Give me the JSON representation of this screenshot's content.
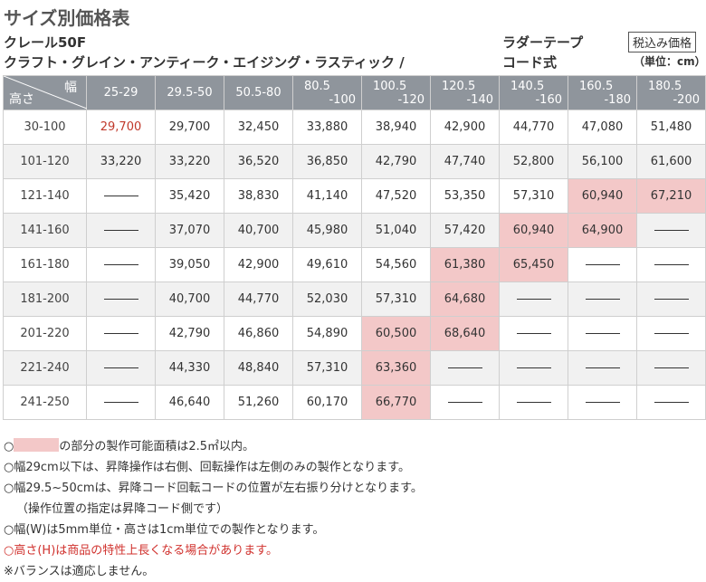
{
  "title": "サイズ別価格表",
  "product": {
    "line1": "クレール50F",
    "line2": "クラフト・グレイン・アンティーク・エイジング・ラスティック /"
  },
  "option": {
    "line1": "ラダーテープ",
    "line2": "コード式"
  },
  "tax_label": "税込み価格",
  "unit_label": "（単位：cm）",
  "table": {
    "width_label": "幅",
    "height_label": "高さ",
    "columns": [
      "25-29",
      "29.5-50",
      "50.5-80",
      "80.5\n-100",
      "100.5\n-120",
      "120.5\n-140",
      "140.5\n-160",
      "160.5\n-180",
      "180.5\n-200"
    ],
    "rows": [
      {
        "label": "30-100",
        "values": [
          "29,700",
          "29,700",
          "32,450",
          "33,880",
          "38,940",
          "42,900",
          "44,770",
          "47,080",
          "51,480"
        ]
      },
      {
        "label": "101-120",
        "values": [
          "33,220",
          "33,220",
          "36,520",
          "36,850",
          "42,790",
          "47,740",
          "52,800",
          "56,100",
          "61,600"
        ]
      },
      {
        "label": "121-140",
        "values": [
          "——",
          "35,420",
          "38,830",
          "41,140",
          "47,520",
          "53,350",
          "57,310",
          "60,940",
          "67,210"
        ]
      },
      {
        "label": "141-160",
        "values": [
          "——",
          "37,070",
          "40,700",
          "45,980",
          "51,040",
          "57,420",
          "60,940",
          "64,900",
          "——"
        ]
      },
      {
        "label": "161-180",
        "values": [
          "——",
          "39,050",
          "42,900",
          "49,610",
          "54,560",
          "61,380",
          "65,450",
          "——",
          "——"
        ]
      },
      {
        "label": "181-200",
        "values": [
          "——",
          "40,700",
          "44,770",
          "52,030",
          "57,310",
          "64,680",
          "——",
          "——",
          "——"
        ]
      },
      {
        "label": "201-220",
        "values": [
          "——",
          "42,790",
          "46,860",
          "54,890",
          "60,500",
          "68,640",
          "——",
          "——",
          "——"
        ]
      },
      {
        "label": "221-240",
        "values": [
          "——",
          "44,330",
          "48,840",
          "57,310",
          "63,360",
          "——",
          "——",
          "——",
          "——"
        ]
      },
      {
        "label": "241-250",
        "values": [
          "——",
          "46,640",
          "51,260",
          "60,170",
          "66,770",
          "——",
          "——",
          "——",
          "——"
        ]
      }
    ],
    "highlight_color": "#f3c8c8",
    "red_color": "#c0392b"
  },
  "notes": {
    "n1_prefix": "○",
    "n1_text": "の部分の製作可能面積は2.5㎡以内。",
    "n2": "○幅29cm以下は、昇降操作は右側、回転操作は左側のみの製作となります。",
    "n3": "○幅29.5~50cmは、昇降コード回転コードの位置が左右振り分けとなります。",
    "n4": "（操作位置の指定は昇降コード側です）",
    "n5": "○幅(W)は5mm単位・高さは1cm単位での製作となります。",
    "n6": "○高さ(H)は商品の特性上長くなる場合があります。",
    "n7": "※バランスは適応しません。"
  }
}
